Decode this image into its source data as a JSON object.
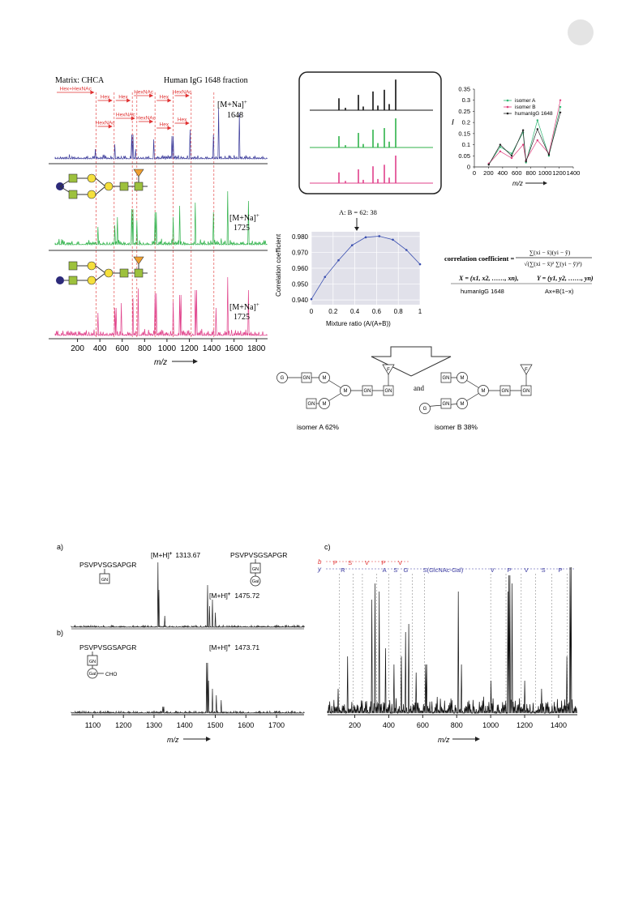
{
  "figure1": {
    "left": {
      "matrix_label": "Matrix: CHCA",
      "fraction_label": "Human IgG 1648 fraction",
      "ion_label": "[M+Na]",
      "ion_superscript": "+",
      "top_mass": "1648",
      "mid_mass": "1725",
      "bottom_mass": "1725",
      "red_labels": [
        "Hex+HexNAc",
        "Hex",
        "Hex",
        "HexNAc",
        "Hex",
        "HexNAc",
        "HexNAc",
        "HexNAc",
        "HexNAc",
        "Hex",
        "Hex"
      ],
      "x_ticks": [
        "200",
        "400",
        "600",
        "800",
        "1000",
        "1200",
        "1400",
        "1600",
        "1800"
      ],
      "x_label": "m/z"
    },
    "top_right_chart": {
      "y_label": "I",
      "x_label": "m/z",
      "y_ticks": [
        "0",
        "0.05",
        "0.1",
        "0.15",
        "0.2",
        "0.25",
        "0.3",
        "0.35"
      ],
      "x_ticks": [
        "0",
        "200",
        "400",
        "600",
        "800",
        "1000",
        "1200",
        "1400"
      ],
      "legend": [
        "isomer A",
        "isomer B",
        "humanIgG 1648"
      ],
      "colors": [
        "#2fb673",
        "#e0407e",
        "#222222"
      ]
    },
    "mixture_chart": {
      "annotation": "A: B = 62: 38",
      "y_label": "Correlation coefficient",
      "x_label": "Mixture ratio (A/(A+B))",
      "y_ticks": [
        "0.940",
        "0.950",
        "0.960",
        "0.970",
        "0.980"
      ],
      "x_ticks": [
        "0",
        "0.2",
        "0.4",
        "0.6",
        "0.8",
        "1"
      ]
    },
    "formula": {
      "label": "correlation coefficient",
      "numerator": "∑(xi − x̄)(yi − ȳ)",
      "denominator": "√(∑(xi − x̄)² ∑(yi − ȳ)²)",
      "x_def": "X = (x1, x2, ……, xn),",
      "x_sub": "humanIgG 1648",
      "y_def": "Y = (y1, y2, ……, yn)",
      "y_sub": "Ax+B(1−x)"
    },
    "structures": {
      "joiner": "and",
      "isomer_a_label": "isomer A   62%",
      "isomer_b_label": "isomer B   38%"
    }
  },
  "figure2": {
    "panel_a": "a)",
    "panel_b": "b)",
    "panel_c": "c)",
    "peptide": "PSVPVSGSAPGR",
    "ion_a1": "[M+H]",
    "ion_a1_value": "1313.67",
    "ion_a2": "[M+H]",
    "ion_a2_value": "1475.72",
    "ion_b": "[M+H]",
    "ion_b_value": "1473.71",
    "cho_label": "CHO",
    "plus": "+",
    "ab_x_ticks": [
      "1100",
      "1200",
      "1300",
      "1400",
      "1500",
      "1600",
      "1700"
    ],
    "c_x_ticks": [
      "200",
      "400",
      "600",
      "800",
      "1000",
      "1200",
      "1400"
    ],
    "x_label": "m/z",
    "b_ion_letter": "b",
    "y_ion_letter": "y",
    "b_series": [
      "P",
      "S",
      "V",
      "P",
      "V"
    ],
    "y_series": [
      "R",
      "A",
      "S",
      "G",
      "S(GlcNAc-Gal)",
      "V",
      "P",
      "V",
      "S",
      "P"
    ]
  },
  "chart_data": [
    {
      "type": "line",
      "title": "",
      "xlabel": "m/z",
      "ylabel": "I",
      "xlim": [
        0,
        1400
      ],
      "ylim": [
        0,
        0.35
      ],
      "x": [
        204,
        366,
        528,
        690,
        731,
        893,
        1055,
        1217
      ],
      "series": [
        {
          "name": "isomer A",
          "values": [
            0.012,
            0.09,
            0.06,
            0.155,
            0.02,
            0.21,
            0.05,
            0.27
          ]
        },
        {
          "name": "isomer B",
          "values": [
            0.015,
            0.07,
            0.04,
            0.1,
            0.03,
            0.12,
            0.06,
            0.3
          ]
        },
        {
          "name": "humanIgG 1648",
          "values": [
            0.01,
            0.1,
            0.05,
            0.165,
            0.025,
            0.17,
            0.055,
            0.245
          ]
        }
      ]
    },
    {
      "type": "line",
      "title": "",
      "xlabel": "Mixture ratio (A/(A+B))",
      "ylabel": "Correlation coefficient",
      "xlim": [
        0,
        1
      ],
      "ylim": [
        0.937,
        0.983
      ],
      "x": [
        0,
        0.125,
        0.25,
        0.375,
        0.5,
        0.625,
        0.75,
        0.875,
        1.0
      ],
      "series": [
        {
          "name": "",
          "values": [
            0.9405,
            0.9545,
            0.965,
            0.9745,
            0.9795,
            0.9802,
            0.978,
            0.9715,
            0.9625
          ]
        }
      ]
    }
  ]
}
